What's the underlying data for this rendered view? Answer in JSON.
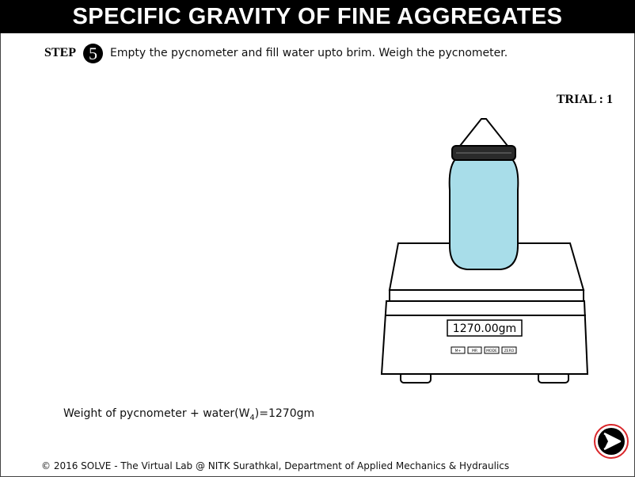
{
  "header": {
    "title": "SPECIFIC GRAVITY OF FINE AGGREGATES"
  },
  "step": {
    "label": "STEP",
    "number": "5",
    "instruction": "Empty the pycnometer and fill water upto brim. Weigh the pycnometer."
  },
  "trial": {
    "text": "TRIAL : 1"
  },
  "balance": {
    "display": "1270.00gm",
    "buttons": [
      "M+",
      "MR",
      "MODE",
      "ZERO"
    ]
  },
  "result": {
    "prefix": "Weight of pycnometer + water(W",
    "subscript": "4",
    "suffix": ")=1270gm"
  },
  "footer": {
    "text": "© 2016 SOLVE - The Virtual Lab @ NITK Surathkal, Department of Applied Mechanics & Hydraulics"
  },
  "colors": {
    "water": "#a8dde9",
    "next_ring": "#d9262a"
  },
  "icons": {
    "next": "next-arrow-icon"
  }
}
